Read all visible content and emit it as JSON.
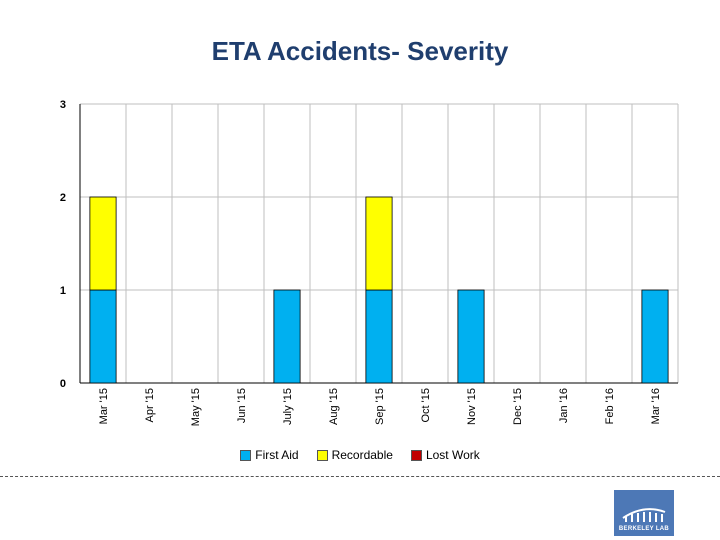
{
  "title": "ETA Accidents-  Severity",
  "chart_data": {
    "type": "bar",
    "stacked": true,
    "title": "ETA Accidents-  Severity",
    "categories": [
      "Mar '15",
      "Apr '15",
      "May '15",
      "Jun '15",
      "July '15",
      "Aug '15",
      "Sep '15",
      "Oct '15",
      "Nov '15",
      "Dec '15",
      "Jan '16",
      "Feb '16",
      "Mar '16"
    ],
    "series": [
      {
        "name": "First Aid",
        "color": "#00b0f0",
        "values": [
          1,
          0,
          0,
          0,
          1,
          0,
          1,
          0,
          1,
          0,
          0,
          0,
          1
        ]
      },
      {
        "name": "Recordable",
        "color": "#ffff00",
        "values": [
          1,
          0,
          0,
          0,
          0,
          0,
          1,
          0,
          0,
          0,
          0,
          0,
          0
        ]
      },
      {
        "name": "Lost Work",
        "color": "#c00000",
        "values": [
          0,
          0,
          0,
          0,
          0,
          0,
          0,
          0,
          0,
          0,
          0,
          0,
          0
        ]
      }
    ],
    "ylim": [
      0,
      3
    ],
    "yticks": [
      0,
      1,
      2,
      3
    ],
    "xlabel": "",
    "ylabel": "",
    "grid": true,
    "legend_position": "bottom"
  },
  "logo": {
    "text": "BERKELEY LAB"
  }
}
